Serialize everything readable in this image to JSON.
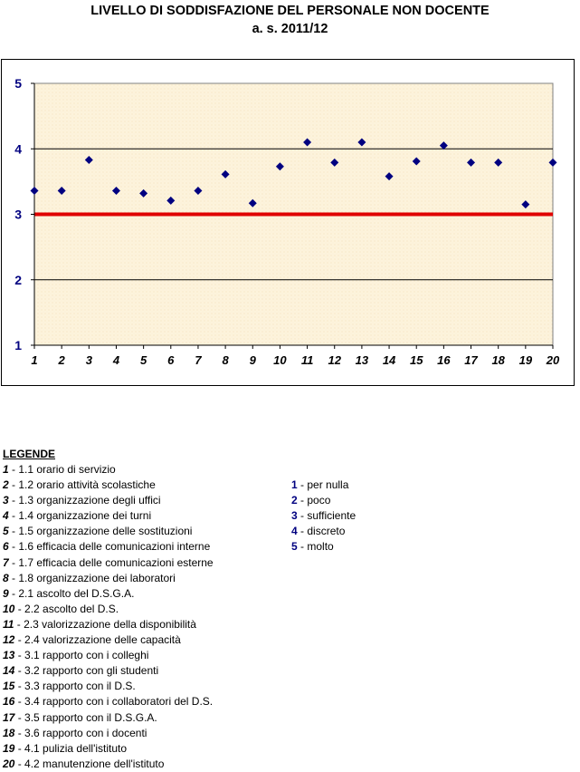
{
  "title": "LIVELLO DI SODDISFAZIONE DEL PERSONALE NON DOCENTE",
  "subtitle": "a. s. 2011/12",
  "chart_data": {
    "type": "scatter",
    "x": [
      1,
      2,
      3,
      4,
      5,
      6,
      7,
      8,
      9,
      10,
      11,
      12,
      13,
      14,
      15,
      16,
      17,
      18,
      19,
      20
    ],
    "y": [
      3.36,
      3.36,
      3.83,
      3.36,
      3.32,
      3.21,
      3.36,
      3.61,
      3.17,
      3.73,
      4.1,
      3.79,
      4.1,
      3.58,
      3.81,
      4.05,
      3.79,
      3.79,
      3.15,
      3.79
    ],
    "ylim": [
      1,
      5
    ],
    "yticks": [
      1,
      2,
      3,
      4,
      5
    ],
    "xticks": [
      1,
      2,
      3,
      4,
      5,
      6,
      7,
      8,
      9,
      10,
      11,
      12,
      13,
      14,
      15,
      16,
      17,
      18,
      19,
      20
    ],
    "reference_line": 3,
    "gridlines_y": [
      2,
      4
    ],
    "colors": {
      "marker": "#000080",
      "reference": "#e00000",
      "plot_background": "#fdf3dc",
      "tick_labels_y": "#000080",
      "tick_labels_x": "#000080"
    }
  },
  "legend": {
    "heading": "LEGENDE",
    "items": [
      {
        "num": "1",
        "text": " - 1.1 orario di servizio"
      },
      {
        "num": "2",
        "text": " - 1.2 orario attività scolastiche"
      },
      {
        "num": "3",
        "text": " - 1.3 organizzazione degli uffici"
      },
      {
        "num": "4",
        "text": " - 1.4 organizzazione dei turni"
      },
      {
        "num": "5",
        "text": " - 1.5 organizzazione delle sostituzioni"
      },
      {
        "num": "6",
        "text": " - 1.6 efficacia delle comunicazioni interne"
      },
      {
        "num": "7",
        "text": " - 1.7 efficacia delle comunicazioni esterne"
      },
      {
        "num": "8",
        "text": " - 1.8 organizzazione dei laboratori"
      },
      {
        "num": "9",
        "text": " - 2.1 ascolto del D.S.G.A."
      },
      {
        "num": "10",
        "text": " - 2.2 ascolto del D.S."
      },
      {
        "num": "11",
        "text": " - 2.3 valorizzazione della disponibilità"
      },
      {
        "num": "12",
        "text": " - 2.4 valorizzazione delle capacità"
      },
      {
        "num": "13",
        "text": " - 3.1 rapporto con i colleghi"
      },
      {
        "num": "14",
        "text": " - 3.2 rapporto con gli studenti"
      },
      {
        "num": "15",
        "text": " - 3.3 rapporto con il D.S."
      },
      {
        "num": "16",
        "text": " - 3.4 rapporto con i collaboratori del D.S."
      },
      {
        "num": "17",
        "text": " - 3.5 rapporto con il D.S.G.A."
      },
      {
        "num": "18",
        "text": " - 3.6 rapporto con i docenti"
      },
      {
        "num": "19",
        "text": " - 4.1 pulizia dell'istituto"
      },
      {
        "num": "20",
        "text": " - 4.2 manutenzione dell'istituto"
      }
    ],
    "scale": [
      {
        "num": "1",
        "text": " - per nulla"
      },
      {
        "num": "2",
        "text": " - poco"
      },
      {
        "num": "3",
        "text": " - sufficiente"
      },
      {
        "num": "4",
        "text": " - discreto"
      },
      {
        "num": "5",
        "text": " - molto"
      }
    ]
  }
}
